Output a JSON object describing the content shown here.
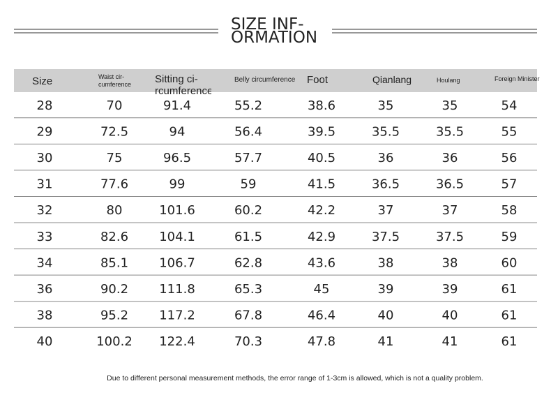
{
  "title": {
    "lines": [
      "SIZE INF-",
      "ORMATION"
    ]
  },
  "table": {
    "header": [
      [
        "Size"
      ],
      [
        "Waist cir-",
        "cumference"
      ],
      [
        "Sitting ci-",
        "rcumference"
      ],
      [
        "Belly circumference"
      ],
      [
        "Foot"
      ],
      [
        "Qianlang"
      ],
      [
        "Houlang"
      ],
      [
        "Foreign Minister"
      ]
    ],
    "rows": [
      [
        28,
        70,
        91.4,
        55.2,
        38.6,
        35,
        35,
        54
      ],
      [
        29,
        72.5,
        94,
        56.4,
        39.5,
        35.5,
        35.5,
        55
      ],
      [
        30,
        75,
        96.5,
        57.7,
        40.5,
        36,
        36,
        56
      ],
      [
        31,
        77.6,
        99,
        59,
        41.5,
        36.5,
        36.5,
        57
      ],
      [
        32,
        80,
        101.6,
        60.2,
        42.2,
        37,
        37,
        58
      ],
      [
        33,
        82.6,
        104.1,
        61.5,
        42.9,
        37.5,
        37.5,
        59
      ],
      [
        34,
        85.1,
        106.7,
        62.8,
        43.6,
        38,
        38,
        60
      ],
      [
        36,
        90.2,
        111.8,
        65.3,
        45,
        39,
        39,
        61
      ],
      [
        38,
        95.2,
        117.2,
        67.8,
        46.4,
        40,
        40,
        61
      ],
      [
        40,
        100.2,
        122.4,
        70.3,
        47.8,
        41,
        41,
        61
      ]
    ]
  },
  "footnote": "Due to different personal measurement methods, the error range of 1-3cm is allowed, which is not a quality problem."
}
